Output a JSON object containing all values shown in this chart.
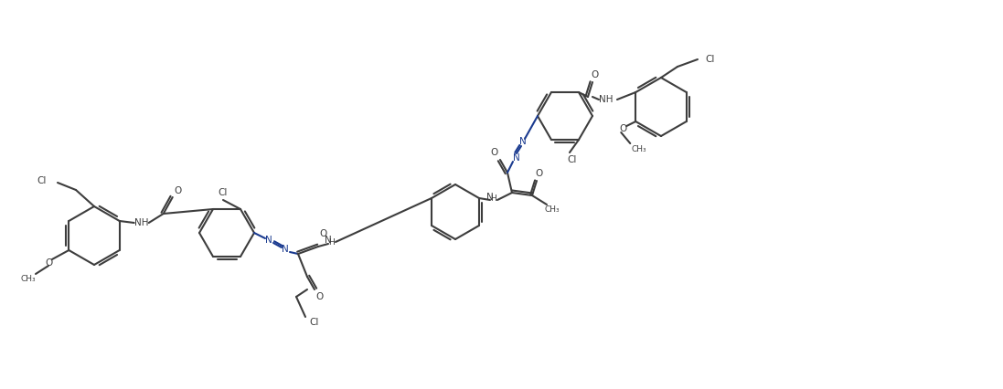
{
  "bg_color": "#ffffff",
  "line_color": "#3d3d3d",
  "azo_color": "#1a3a8f",
  "lw": 1.5,
  "figsize": [
    10.97,
    4.26
  ],
  "dpi": 100,
  "xlim": [
    0,
    1097
  ],
  "ylim": [
    0,
    426
  ],
  "fs": 7.5,
  "fs_small": 6.5
}
